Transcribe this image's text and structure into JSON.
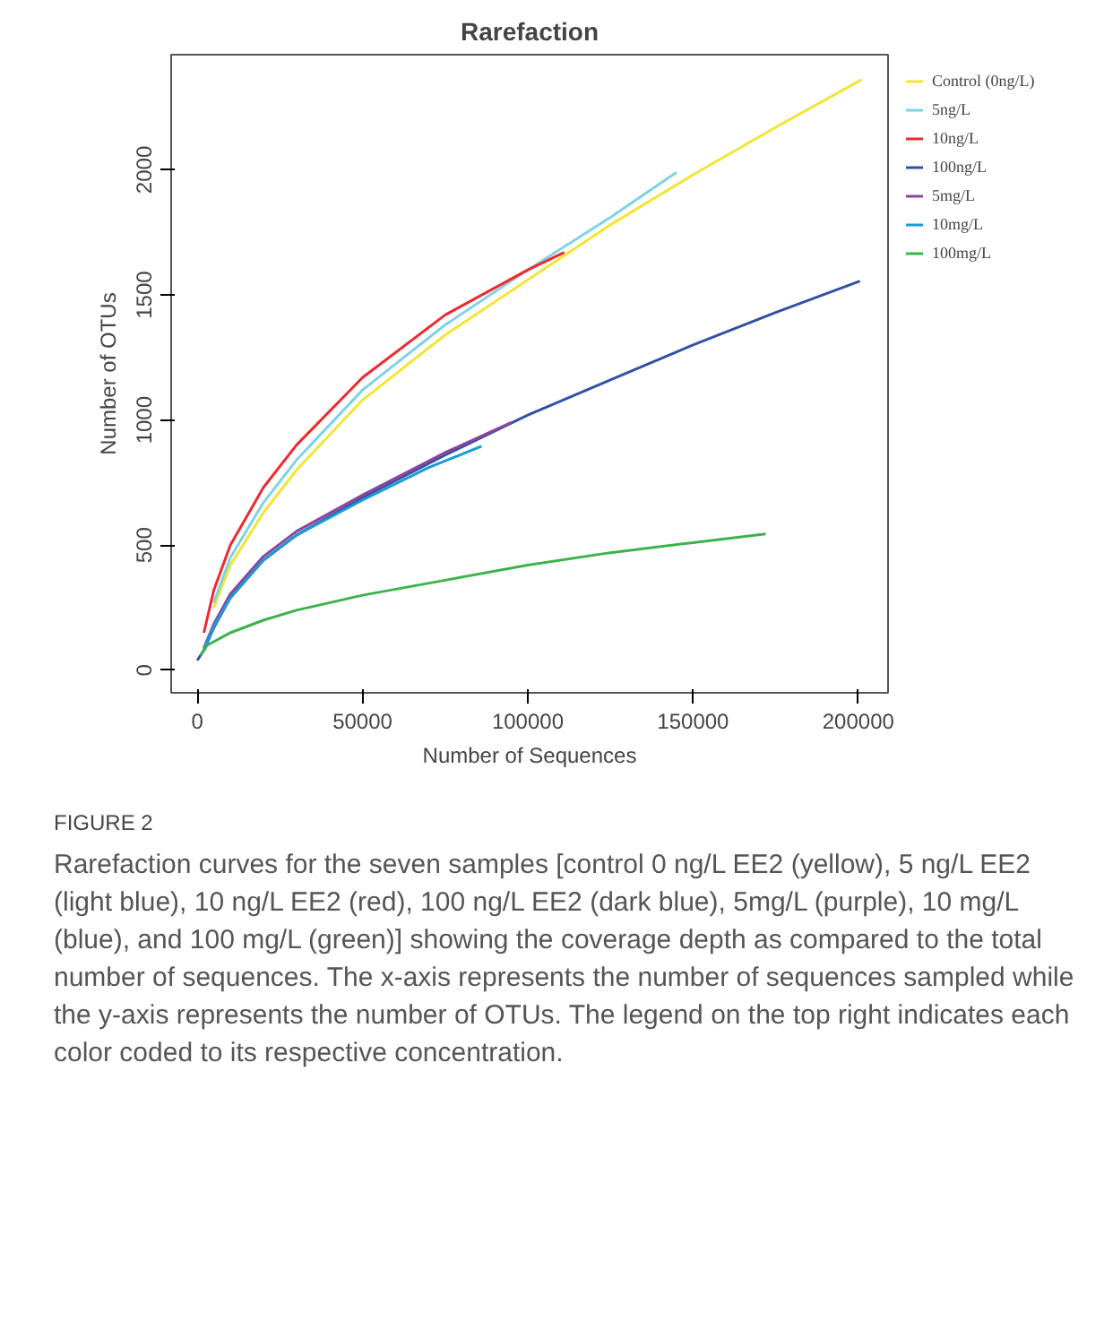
{
  "chart_data": {
    "type": "line",
    "title": "Rarefaction",
    "xlabel": "Number of Sequences",
    "ylabel": "Number of OTUs",
    "xlim": [
      -7900,
      209000
    ],
    "ylim": [
      -90,
      2460
    ],
    "xticks": [
      0,
      50000,
      100000,
      150000,
      200000
    ],
    "yticks": [
      0,
      500,
      1000,
      1500,
      2000
    ],
    "grid": false,
    "legend": "top right",
    "marker": "none",
    "line_style": "solid",
    "series": [
      {
        "name": "Control (0ng/L)",
        "color": "#f2e534",
        "x": [
          5000,
          10000,
          20000,
          30000,
          50000,
          75000,
          100000,
          125000,
          150000,
          175000,
          201000
        ],
        "values": [
          250,
          420,
          630,
          800,
          1080,
          1340,
          1560,
          1780,
          1980,
          2170,
          2360
        ]
      },
      {
        "name": "5ng/L",
        "color": "#7fd3e3",
        "x": [
          5000,
          10000,
          20000,
          30000,
          50000,
          75000,
          100000,
          125000,
          145000
        ],
        "values": [
          270,
          450,
          670,
          840,
          1120,
          1380,
          1600,
          1810,
          1990
        ]
      },
      {
        "name": "10ng/L",
        "color": "#ee2a2f",
        "x": [
          2000,
          5000,
          10000,
          20000,
          30000,
          50000,
          75000,
          100000,
          111000
        ],
        "values": [
          150,
          320,
          500,
          730,
          900,
          1170,
          1420,
          1600,
          1670
        ]
      },
      {
        "name": "100ng/L",
        "color": "#3450a3",
        "x": [
          0,
          2000,
          5000,
          10000,
          20000,
          30000,
          50000,
          75000,
          100000,
          125000,
          150000,
          175000,
          200500
        ],
        "values": [
          40,
          80,
          170,
          290,
          440,
          540,
          690,
          860,
          1020,
          1160,
          1300,
          1430,
          1555
        ]
      },
      {
        "name": "5mg/L",
        "color": "#8b469c",
        "x": [
          2000,
          5000,
          10000,
          20000,
          30000,
          50000,
          75000,
          95000
        ],
        "values": [
          90,
          185,
          305,
          455,
          555,
          700,
          870,
          990
        ]
      },
      {
        "name": "10mg/L",
        "color": "#1a9ad6",
        "x": [
          2000,
          5000,
          10000,
          20000,
          30000,
          50000,
          70000,
          86000
        ],
        "values": [
          85,
          175,
          290,
          440,
          540,
          680,
          810,
          895
        ]
      },
      {
        "name": "100mg/L",
        "color": "#3cb34a",
        "x": [
          1000,
          3000,
          10000,
          20000,
          30000,
          50000,
          75000,
          100000,
          125000,
          150000,
          172000
        ],
        "values": [
          60,
          100,
          150,
          200,
          240,
          300,
          360,
          420,
          470,
          510,
          545
        ]
      }
    ],
    "annotations": [
      "FIGURE 2",
      "Rarefaction curves for the seven samples [control 0 ng/L EE2 (yellow), 5 ng/L EE2 (light blue), 10 ng/L EE2 (red), 100 ng/L EE2 (dark blue), 5mg/L (purple), 10 mg/L (blue), and 100 mg/L (green)] showing the coverage depth as compared to the total number of sequences. The x-axis represents the number of sequences sampled while the y-axis represents the number of OTUs. The legend on the top right indicates each color coded to its respective concentration."
    ]
  }
}
